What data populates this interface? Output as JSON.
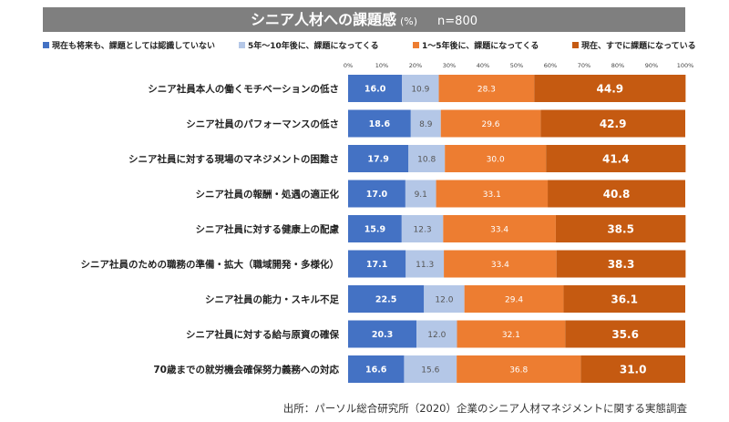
{
  "header": {
    "title": "シニア人材への課題感",
    "unit": "(%)",
    "n": "n=800"
  },
  "chart_data": {
    "type": "bar",
    "orientation": "horizontal",
    "stacked": true,
    "xlim": [
      0,
      100
    ],
    "xticks": [
      "0%",
      "10%",
      "20%",
      "30%",
      "40%",
      "50%",
      "60%",
      "70%",
      "80%",
      "90%",
      "100%"
    ],
    "legend_position": "top",
    "categories": [
      "シニア社員本人の働くモチベーションの低さ",
      "シニア社員のパフォーマンスの低さ",
      "シニア社員に対する現場のマネジメントの困難さ",
      "シニア社員の報酬・処遇の適正化",
      "シニア社員に対する健康上の配慮",
      "シニア社員のための職務の準備・拡大（職域開発・多様化）",
      "シニア社員の能力・スキル不足",
      "シニア社員に対する給与原資の確保",
      "70歳までの就労機会確保努力義務への対応"
    ],
    "series": [
      {
        "name": "現在も将来も、課題としては認識していない",
        "color": "#4472c4",
        "values": [
          16.0,
          18.6,
          17.9,
          17.0,
          15.9,
          17.1,
          22.5,
          20.3,
          16.6
        ],
        "labels": [
          "16.0",
          "18.6",
          "17.9",
          "17.0",
          "15.9",
          "17.1",
          "22.5",
          "20.3",
          "16.6"
        ]
      },
      {
        "name": "5年～10年後に、課題になってくる",
        "color": "#b4c7e7",
        "values": [
          10.9,
          8.9,
          10.8,
          9.1,
          12.3,
          11.3,
          12.0,
          12.0,
          15.6
        ],
        "labels": [
          "10.9",
          "8.9",
          "10.8",
          "9.1",
          "12.3",
          "11.3",
          "12.0",
          "12.0",
          "15.6"
        ]
      },
      {
        "name": "1～5年後に、課題になってくる",
        "color": "#ed7d31",
        "values": [
          28.3,
          29.6,
          30.0,
          33.1,
          33.4,
          33.4,
          29.4,
          32.1,
          36.8
        ],
        "labels": [
          "28.3",
          "29.6",
          "30.0",
          "33.1",
          "33.4",
          "33.4",
          "29.4",
          "32.1",
          "36.8"
        ]
      },
      {
        "name": "現在、すでに課題になっている",
        "color": "#c55a11",
        "values": [
          44.9,
          42.9,
          41.4,
          40.8,
          38.5,
          38.3,
          36.1,
          35.6,
          31.0
        ],
        "labels": [
          "44.9",
          "42.9",
          "41.4",
          "40.8",
          "38.5",
          "38.3",
          "36.1",
          "35.6",
          "31.0"
        ]
      }
    ]
  },
  "source": "出所：パーソル総合研究所（2020）企業のシニア人材マネジメントに関する実態調査"
}
